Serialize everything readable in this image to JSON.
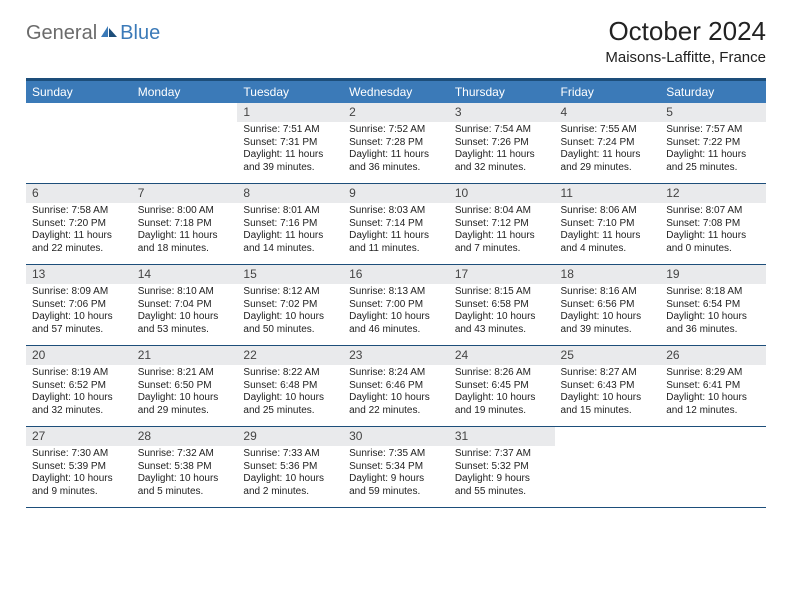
{
  "logo": {
    "part1": "General",
    "part2": "Blue"
  },
  "title": "October 2024",
  "location": "Maisons-Laffitte, France",
  "colors": {
    "header_bg": "#3b7ab8",
    "header_border": "#1d4e7a",
    "datebar_bg": "#e9eaec",
    "text": "#222222",
    "logo_gray": "#6b6b6b",
    "logo_blue": "#3b7ab8"
  },
  "dayNames": [
    "Sunday",
    "Monday",
    "Tuesday",
    "Wednesday",
    "Thursday",
    "Friday",
    "Saturday"
  ],
  "weeks": [
    [
      null,
      null,
      {
        "date": "1",
        "sunrise": "7:51 AM",
        "sunset": "7:31 PM",
        "daylight": "11 hours and 39 minutes."
      },
      {
        "date": "2",
        "sunrise": "7:52 AM",
        "sunset": "7:28 PM",
        "daylight": "11 hours and 36 minutes."
      },
      {
        "date": "3",
        "sunrise": "7:54 AM",
        "sunset": "7:26 PM",
        "daylight": "11 hours and 32 minutes."
      },
      {
        "date": "4",
        "sunrise": "7:55 AM",
        "sunset": "7:24 PM",
        "daylight": "11 hours and 29 minutes."
      },
      {
        "date": "5",
        "sunrise": "7:57 AM",
        "sunset": "7:22 PM",
        "daylight": "11 hours and 25 minutes."
      }
    ],
    [
      {
        "date": "6",
        "sunrise": "7:58 AM",
        "sunset": "7:20 PM",
        "daylight": "11 hours and 22 minutes."
      },
      {
        "date": "7",
        "sunrise": "8:00 AM",
        "sunset": "7:18 PM",
        "daylight": "11 hours and 18 minutes."
      },
      {
        "date": "8",
        "sunrise": "8:01 AM",
        "sunset": "7:16 PM",
        "daylight": "11 hours and 14 minutes."
      },
      {
        "date": "9",
        "sunrise": "8:03 AM",
        "sunset": "7:14 PM",
        "daylight": "11 hours and 11 minutes."
      },
      {
        "date": "10",
        "sunrise": "8:04 AM",
        "sunset": "7:12 PM",
        "daylight": "11 hours and 7 minutes."
      },
      {
        "date": "11",
        "sunrise": "8:06 AM",
        "sunset": "7:10 PM",
        "daylight": "11 hours and 4 minutes."
      },
      {
        "date": "12",
        "sunrise": "8:07 AM",
        "sunset": "7:08 PM",
        "daylight": "11 hours and 0 minutes."
      }
    ],
    [
      {
        "date": "13",
        "sunrise": "8:09 AM",
        "sunset": "7:06 PM",
        "daylight": "10 hours and 57 minutes."
      },
      {
        "date": "14",
        "sunrise": "8:10 AM",
        "sunset": "7:04 PM",
        "daylight": "10 hours and 53 minutes."
      },
      {
        "date": "15",
        "sunrise": "8:12 AM",
        "sunset": "7:02 PM",
        "daylight": "10 hours and 50 minutes."
      },
      {
        "date": "16",
        "sunrise": "8:13 AM",
        "sunset": "7:00 PM",
        "daylight": "10 hours and 46 minutes."
      },
      {
        "date": "17",
        "sunrise": "8:15 AM",
        "sunset": "6:58 PM",
        "daylight": "10 hours and 43 minutes."
      },
      {
        "date": "18",
        "sunrise": "8:16 AM",
        "sunset": "6:56 PM",
        "daylight": "10 hours and 39 minutes."
      },
      {
        "date": "19",
        "sunrise": "8:18 AM",
        "sunset": "6:54 PM",
        "daylight": "10 hours and 36 minutes."
      }
    ],
    [
      {
        "date": "20",
        "sunrise": "8:19 AM",
        "sunset": "6:52 PM",
        "daylight": "10 hours and 32 minutes."
      },
      {
        "date": "21",
        "sunrise": "8:21 AM",
        "sunset": "6:50 PM",
        "daylight": "10 hours and 29 minutes."
      },
      {
        "date": "22",
        "sunrise": "8:22 AM",
        "sunset": "6:48 PM",
        "daylight": "10 hours and 25 minutes."
      },
      {
        "date": "23",
        "sunrise": "8:24 AM",
        "sunset": "6:46 PM",
        "daylight": "10 hours and 22 minutes."
      },
      {
        "date": "24",
        "sunrise": "8:26 AM",
        "sunset": "6:45 PM",
        "daylight": "10 hours and 19 minutes."
      },
      {
        "date": "25",
        "sunrise": "8:27 AM",
        "sunset": "6:43 PM",
        "daylight": "10 hours and 15 minutes."
      },
      {
        "date": "26",
        "sunrise": "8:29 AM",
        "sunset": "6:41 PM",
        "daylight": "10 hours and 12 minutes."
      }
    ],
    [
      {
        "date": "27",
        "sunrise": "7:30 AM",
        "sunset": "5:39 PM",
        "daylight": "10 hours and 9 minutes."
      },
      {
        "date": "28",
        "sunrise": "7:32 AM",
        "sunset": "5:38 PM",
        "daylight": "10 hours and 5 minutes."
      },
      {
        "date": "29",
        "sunrise": "7:33 AM",
        "sunset": "5:36 PM",
        "daylight": "10 hours and 2 minutes."
      },
      {
        "date": "30",
        "sunrise": "7:35 AM",
        "sunset": "5:34 PM",
        "daylight": "9 hours and 59 minutes."
      },
      {
        "date": "31",
        "sunrise": "7:37 AM",
        "sunset": "5:32 PM",
        "daylight": "9 hours and 55 minutes."
      },
      null,
      null
    ]
  ],
  "labels": {
    "sunrise": "Sunrise:",
    "sunset": "Sunset:",
    "daylight": "Daylight:"
  }
}
